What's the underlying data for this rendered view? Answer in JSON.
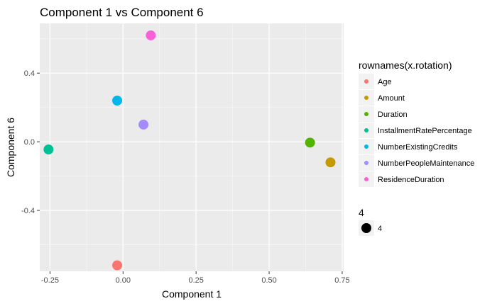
{
  "chart_data": {
    "type": "scatter",
    "title": "Component 1 vs Component 6",
    "xlabel": "Component 1",
    "ylabel": "Component 6",
    "xlim": [
      -0.285,
      0.755
    ],
    "ylim": [
      -0.755,
      0.69
    ],
    "x_ticks": [
      {
        "value": -0.25,
        "label": "-0.25"
      },
      {
        "value": 0.0,
        "label": "0.00"
      },
      {
        "value": 0.25,
        "label": "0.25"
      },
      {
        "value": 0.5,
        "label": "0.50"
      },
      {
        "value": 0.75,
        "label": "0.75"
      }
    ],
    "y_ticks": [
      {
        "value": -0.4,
        "label": "-0.4"
      },
      {
        "value": 0.0,
        "label": "0.0"
      },
      {
        "value": 0.4,
        "label": "0.4"
      }
    ],
    "grid": true,
    "legend_position": "right",
    "color_legend_title": "rownames(x.rotation)",
    "size_legend": {
      "title": "4",
      "label": "4"
    },
    "series": [
      {
        "name": "Age",
        "color": "#F8766D",
        "x": -0.02,
        "y": -0.72
      },
      {
        "name": "Amount",
        "color": "#C49A00",
        "x": 0.71,
        "y": -0.12
      },
      {
        "name": "Duration",
        "color": "#53B400",
        "x": 0.64,
        "y": -0.005
      },
      {
        "name": "InstallmentRatePercentage",
        "color": "#00C094",
        "x": -0.255,
        "y": -0.045
      },
      {
        "name": "NumberExistingCredits",
        "color": "#00B6EB",
        "x": -0.02,
        "y": 0.24
      },
      {
        "name": "NumberPeopleMaintenance",
        "color": "#A58AFF",
        "x": 0.07,
        "y": 0.1
      },
      {
        "name": "ResidenceDuration",
        "color": "#FB61D7",
        "x": 0.095,
        "y": 0.62
      }
    ]
  }
}
